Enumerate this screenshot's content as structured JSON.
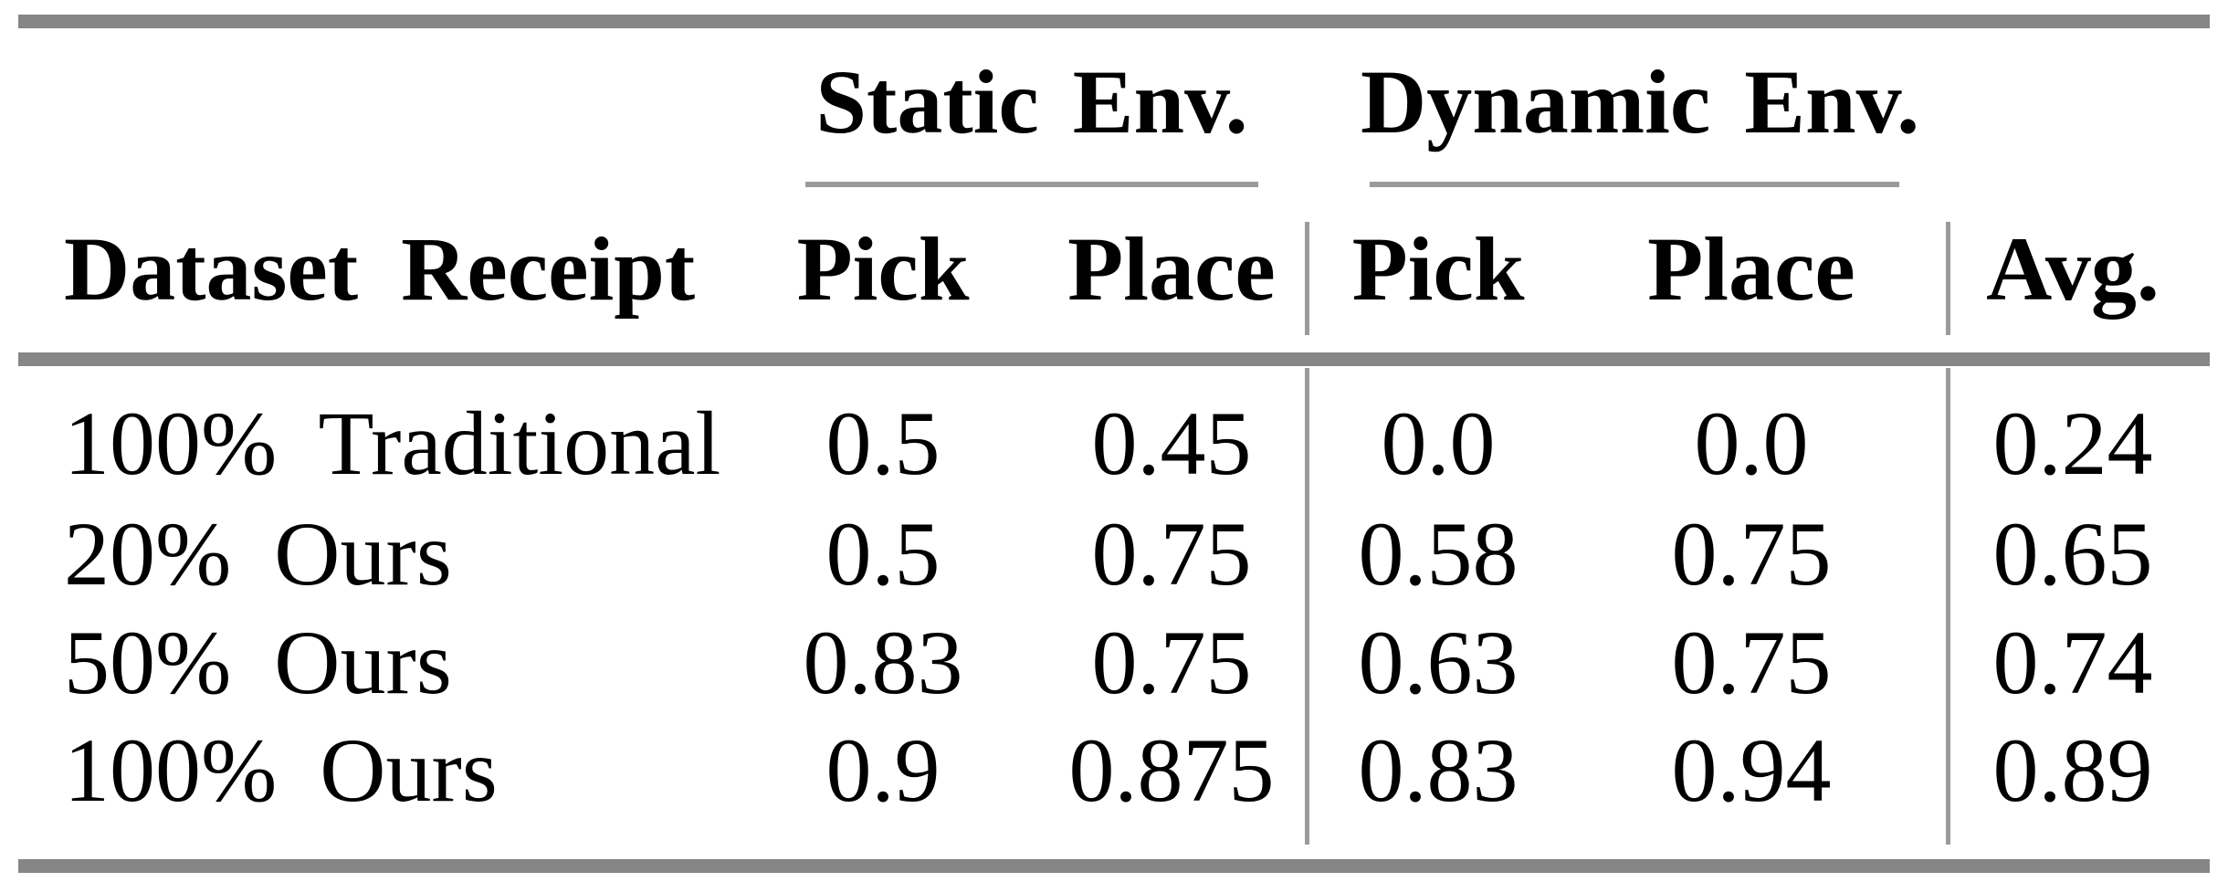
{
  "table": {
    "col_groups": [
      {
        "label": "Static Env."
      },
      {
        "label": "Dynamic Env."
      }
    ],
    "headers": {
      "dataset": "Dataset Receipt",
      "static_pick": "Pick",
      "static_place": "Place",
      "dynamic_pick": "Pick",
      "dynamic_place": "Place",
      "avg": "Avg."
    },
    "rows": [
      {
        "label": "100% Traditional",
        "static_pick": "0.5",
        "static_place": "0.45",
        "dynamic_pick": "0.0",
        "dynamic_place": "0.0",
        "avg": "0.24"
      },
      {
        "label": "20% Ours",
        "static_pick": "0.5",
        "static_place": "0.75",
        "dynamic_pick": "0.58",
        "dynamic_place": "0.75",
        "avg": "0.65"
      },
      {
        "label": "50% Ours",
        "static_pick": "0.83",
        "static_place": "0.75",
        "dynamic_pick": "0.63",
        "dynamic_place": "0.75",
        "avg": "0.74"
      },
      {
        "label": "100% Ours",
        "static_pick": "0.9",
        "static_place": "0.875",
        "dynamic_pick": "0.83",
        "dynamic_place": "0.94",
        "avg": "0.89"
      }
    ],
    "colors": {
      "rule_thick": "#868686",
      "rule_thin": "#9b9b9b",
      "text": "#000000",
      "background": "#ffffff"
    }
  }
}
